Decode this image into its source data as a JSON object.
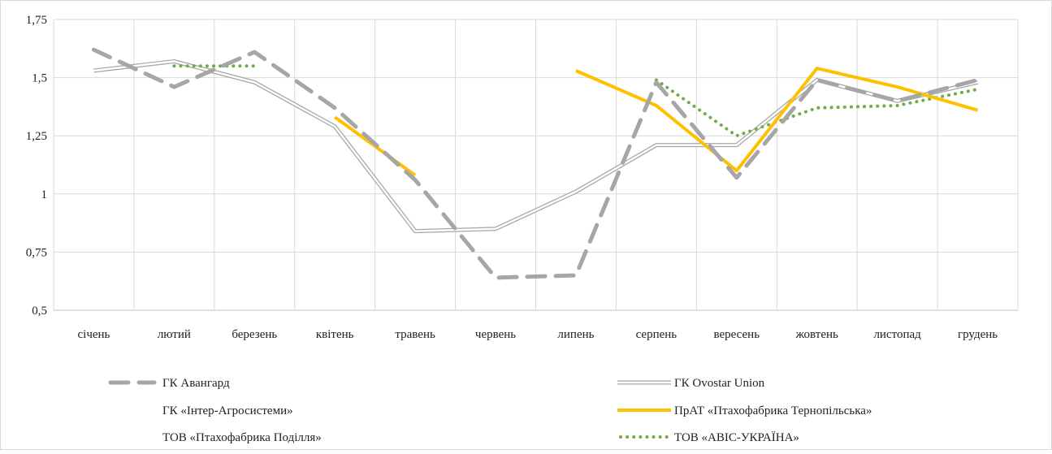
{
  "chart_data": {
    "type": "line",
    "title": "",
    "xlabel": "",
    "ylabel": "",
    "ylim": [
      0.5,
      1.75
    ],
    "yticks": [
      0.5,
      0.75,
      1,
      1.25,
      1.5,
      1.75
    ],
    "ytick_labels": [
      "0,5",
      "0,75",
      "1",
      "1,25",
      "1,5",
      "1,75"
    ],
    "grid": true,
    "legend_position": "bottom",
    "categories": [
      "січень",
      "лютий",
      "березень",
      "квітень",
      "травень",
      "червень",
      "липень",
      "серпень",
      "вересень",
      "жовтень",
      "листопад",
      "грудень"
    ],
    "series": [
      {
        "name": "ГК Авангард",
        "color": "#a6a6a6",
        "style": "dashed",
        "values": [
          1.62,
          1.46,
          1.61,
          1.37,
          1.06,
          0.64,
          0.65,
          1.48,
          1.07,
          1.49,
          1.4,
          1.49
        ]
      },
      {
        "name": "ГК Ovostar Union",
        "color": "#a6a6a6",
        "style": "double",
        "values": [
          1.53,
          1.57,
          1.48,
          1.29,
          0.84,
          0.85,
          1.01,
          1.21,
          1.21,
          1.49,
          1.4,
          1.48
        ]
      },
      {
        "name": "ГК «Інтер-Агросистеми»",
        "color": "#ffffff",
        "style": "none",
        "values": [
          null,
          null,
          null,
          null,
          null,
          null,
          null,
          null,
          null,
          null,
          null,
          null
        ]
      },
      {
        "name": "ПрАТ «Птахофабрика Тернопільська»",
        "color": "#ffc000",
        "style": "solid",
        "values": [
          null,
          null,
          null,
          1.33,
          1.08,
          null,
          1.53,
          1.38,
          1.1,
          1.54,
          1.46,
          1.36
        ]
      },
      {
        "name": "ТОВ «Птахофабрика Поділля»",
        "color": "#ffffff",
        "style": "none",
        "values": [
          null,
          null,
          null,
          null,
          null,
          null,
          null,
          null,
          null,
          null,
          null,
          null
        ]
      },
      {
        "name": "ТОВ «АВІС-УКРАЇНА»",
        "color": "#70ad47",
        "style": "dotted",
        "values": [
          null,
          1.55,
          1.55,
          null,
          null,
          null,
          null,
          1.49,
          1.25,
          1.37,
          1.38,
          1.45
        ]
      }
    ]
  }
}
